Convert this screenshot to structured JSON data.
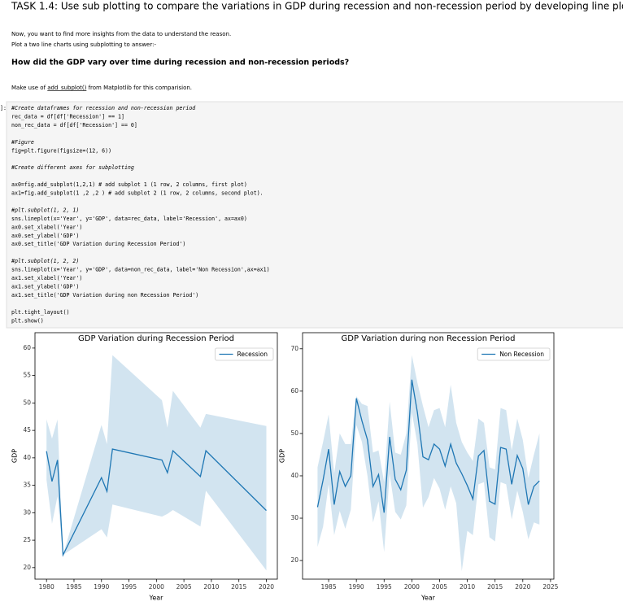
{
  "header": {
    "title": "TASK 1.4: Use sub plotting to compare the variations in GDP during recession and non-recession period by developing line plots for each period."
  },
  "intro": [
    "Now, you want to find more insights from the data to understand the reason.",
    "Plot a two line charts using subplotting to answer:-"
  ],
  "question": "How did the GDP vary over time during recession and non-recession periods?",
  "instruction": {
    "prefix": "Make use of ",
    "link": "add_subplot()",
    "suffix": " from Matplotlib for this comparision."
  },
  "code": {
    "prompt": "]:",
    "blocks": [
      [
        "#Create dataframes for recession and non-recession period",
        "rec_data = df[df['Recession'] == 1]",
        "non_rec_data = df[df['Recession'] == 0]"
      ],
      [
        "#Figure",
        "fig=plt.figure(figsize=(12, 6))"
      ],
      [
        "#Create different axes for subplotting"
      ],
      [
        "ax0=fig.add_subplot(1,2,1) # add subplot 1 (1 row, 2 columns, first plot)",
        "ax1=fig.add_subplot(1 ,2 ,2 ) # add subplot 2 (1 row, 2 columns, second plot)."
      ],
      [
        "#plt.subplot(1, 2, 1)",
        "sns.lineplot(x='Year', y='GDP', data=rec_data, label='Recession', ax=ax0)",
        "ax0.set_xlabel('Year')",
        "ax0.set_ylabel('GDP')",
        "ax0.set_title('GDP Variation during Recession Period')"
      ],
      [
        "#plt.subplot(1, 2, 2)",
        "sns.lineplot(x='Year', y='GDP', data=non_rec_data, label='Non Recession',ax=ax1)",
        "ax1.set_xlabel('Year')",
        "ax1.set_ylabel('GDP')",
        "ax1.set_title('GDP Variation during non Recession Period')"
      ],
      [
        "plt.tight_layout()",
        "plt.show()"
      ]
    ]
  },
  "chart_data": [
    {
      "type": "line",
      "title": "GDP Variation during Recession Period",
      "xlabel": "Year",
      "ylabel": "GDP",
      "x": [
        1980,
        1981,
        1982,
        1983,
        1990,
        1991,
        1992,
        2001,
        2002,
        2003,
        2008,
        2009,
        2020
      ],
      "series": [
        {
          "name": "Recession",
          "color": "#1f77b4",
          "values": [
            41.2,
            35.7,
            39.6,
            22.3,
            36.4,
            33.9,
            41.6,
            39.6,
            37.3,
            41.3,
            36.6,
            41.3,
            30.4
          ],
          "ci_lower": [
            36,
            28,
            33,
            22.3,
            27,
            25.5,
            31.5,
            29.3,
            29.8,
            30.5,
            27.5,
            34,
            19.5
          ],
          "ci_upper": [
            47,
            43.5,
            47,
            22.3,
            46,
            42.5,
            58.7,
            50.5,
            45.5,
            52.2,
            45.5,
            48,
            45.8
          ]
        }
      ],
      "xlim": [
        1977.9,
        2022
      ],
      "ylim": [
        17.9,
        62.8
      ],
      "xticks": [
        1980,
        1985,
        1990,
        1995,
        2000,
        2005,
        2010,
        2015,
        2020
      ],
      "yticks": [
        20,
        25,
        30,
        35,
        40,
        45,
        50,
        55,
        60
      ],
      "legend": "upper right",
      "band_opacity": 0.2
    },
    {
      "type": "line",
      "title": "GDP Variation during non Recession Period",
      "xlabel": "Year",
      "ylabel": "GDP",
      "x": [
        1983,
        1984,
        1985,
        1986,
        1987,
        1988,
        1989,
        1990,
        1991,
        1992,
        1993,
        1994,
        1995,
        1996,
        1997,
        1998,
        1999,
        2000,
        2001,
        2002,
        2003,
        2004,
        2005,
        2006,
        2007,
        2008,
        2009,
        2010,
        2011,
        2012,
        2013,
        2014,
        2015,
        2016,
        2017,
        2018,
        2019,
        2020,
        2021,
        2022,
        2023
      ],
      "series": [
        {
          "name": "Non Recession",
          "color": "#1f77b4",
          "values": [
            32.6,
            39,
            46.3,
            33.2,
            41,
            37.5,
            40,
            58.3,
            53,
            48.5,
            37.5,
            40.3,
            31.3,
            49.2,
            39.2,
            36.7,
            41.3,
            62.7,
            55,
            44.5,
            43.8,
            47.5,
            46.3,
            42.3,
            47.5,
            43,
            40.5,
            37.7,
            34.5,
            44.7,
            46,
            34,
            33.3,
            46.7,
            46.3,
            38,
            44.8,
            41.7,
            33.2,
            37.5,
            38.8
          ],
          "ci_lower": [
            23.2,
            28,
            38,
            26,
            31.7,
            27.5,
            32,
            52,
            48,
            40,
            29,
            34,
            22,
            40.5,
            31.5,
            29.7,
            33,
            55,
            47.5,
            32.5,
            35,
            39.5,
            37,
            32,
            37.5,
            33.5,
            17.5,
            27,
            26,
            38,
            38.5,
            25.5,
            24.5,
            38.5,
            38,
            29.7,
            36.5,
            31.5,
            25,
            29,
            28.5
          ],
          "ci_upper": [
            42,
            48,
            54.5,
            40.5,
            50,
            47.5,
            47.5,
            58.8,
            57,
            56.5,
            45.5,
            46,
            38.5,
            57.5,
            45.5,
            45,
            50,
            68.5,
            62,
            56.5,
            51.5,
            55.5,
            56,
            51.5,
            61.5,
            52.5,
            48,
            45.5,
            43.5,
            53.5,
            52.5,
            42,
            41.5,
            56,
            55.5,
            46,
            53.5,
            48.5,
            39.5,
            45,
            50
          ]
        }
      ],
      "xlim": [
        1980.3,
        2025.6
      ],
      "ylim": [
        15.6,
        73.8
      ],
      "xticks": [
        1985,
        1990,
        1995,
        2000,
        2005,
        2010,
        2015,
        2020,
        2025
      ],
      "yticks": [
        20,
        30,
        40,
        50,
        60,
        70
      ],
      "legend": "upper right",
      "band_opacity": 0.2
    }
  ]
}
